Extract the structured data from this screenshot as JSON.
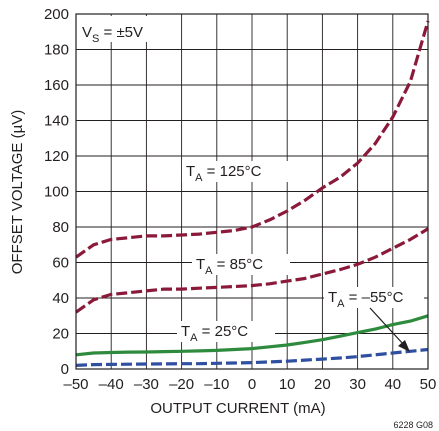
{
  "chart_data": {
    "type": "line",
    "title": "",
    "xlabel": "OUTPUT CURRENT (mA)",
    "ylabel": "OFFSET VOLTAGE (µV)",
    "xlim": [
      -50,
      50
    ],
    "ylim": [
      0,
      200
    ],
    "x_ticks": [
      -50,
      -40,
      -30,
      -20,
      -10,
      0,
      10,
      20,
      30,
      40,
      50
    ],
    "y_ticks": [
      0,
      20,
      40,
      60,
      80,
      100,
      120,
      140,
      160,
      180,
      200
    ],
    "grid": true,
    "supply_label": {
      "main": "V",
      "sub": "S",
      "rest": " = ±5V"
    },
    "figure_id": "6228 G08",
    "series": [
      {
        "name": "TA = 125°C",
        "label": {
          "main": "T",
          "sub": "A",
          "rest": " = 125°C"
        },
        "color": "#8b1a3a",
        "dash": "dashed",
        "x": [
          -50,
          -45,
          -40,
          -35,
          -30,
          -25,
          -20,
          -15,
          -10,
          -5,
          0,
          5,
          10,
          15,
          20,
          25,
          30,
          35,
          40,
          45,
          50
        ],
        "y": [
          63,
          70,
          73,
          74,
          75,
          75,
          75.5,
          76,
          77,
          78,
          80,
          84,
          89,
          95,
          102,
          108,
          116,
          127,
          142,
          162,
          196
        ]
      },
      {
        "name": "TA = 85°C",
        "label": {
          "main": "T",
          "sub": "A",
          "rest": " = 85°C"
        },
        "color": "#8b1a3a",
        "dash": "dashed",
        "x": [
          -50,
          -45,
          -40,
          -35,
          -30,
          -25,
          -20,
          -15,
          -10,
          -5,
          0,
          5,
          10,
          15,
          20,
          25,
          30,
          35,
          40,
          45,
          50
        ],
        "y": [
          32,
          39,
          42,
          43,
          44,
          45,
          45,
          45.5,
          46,
          46.5,
          47,
          48,
          49.5,
          51,
          53.5,
          56,
          59,
          63,
          68,
          73,
          79
        ]
      },
      {
        "name": "TA = 25°C",
        "label": {
          "main": "T",
          "sub": "A",
          "rest": " = 25°C"
        },
        "color": "#2e8b3d",
        "dash": "solid",
        "x": [
          -50,
          -45,
          -40,
          -35,
          -30,
          -25,
          -20,
          -15,
          -10,
          -5,
          0,
          5,
          10,
          15,
          20,
          25,
          30,
          35,
          40,
          45,
          50
        ],
        "y": [
          8,
          9,
          9.3,
          9.5,
          9.6,
          9.8,
          10,
          10.2,
          10.5,
          11,
          11.5,
          12.5,
          13.5,
          15,
          16.5,
          18.5,
          20.5,
          22.5,
          25,
          27,
          30
        ]
      },
      {
        "name": "TA = –55°C",
        "label": {
          "main": "T",
          "sub": "A",
          "rest": " = –55°C"
        },
        "color": "#2f4fa0",
        "dash": "dashed",
        "x": [
          -50,
          -45,
          -40,
          -35,
          -30,
          -25,
          -20,
          -15,
          -10,
          -5,
          0,
          5,
          10,
          15,
          20,
          25,
          30,
          35,
          40,
          45,
          50
        ],
        "y": [
          2,
          2.5,
          2.6,
          2.7,
          2.8,
          2.9,
          3,
          3,
          3.2,
          3.4,
          3.6,
          4,
          4.4,
          5,
          5.6,
          6.2,
          7,
          8,
          9,
          10,
          11
        ]
      }
    ]
  }
}
